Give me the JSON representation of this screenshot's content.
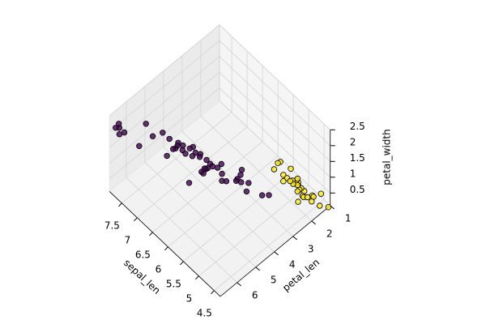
{
  "chart_data": {
    "type": "scatter3d",
    "xlabel": "sepal_len",
    "ylabel": "petal_len",
    "zlabel": "petal_width",
    "xlim": [
      4.3,
      7.9
    ],
    "ylim": [
      1,
      6.9
    ],
    "zlim": [
      0.1,
      2.5
    ],
    "xticks": [
      4.5,
      5.0,
      5.5,
      6.0,
      6.5,
      7.0,
      7.5
    ],
    "yticks": [
      1,
      2,
      3,
      4,
      5,
      6
    ],
    "zticks": [
      0.5,
      1.0,
      1.5,
      2.0,
      2.5
    ],
    "grid": true,
    "series": [
      {
        "color": "#440154",
        "x": [
          7.0,
          6.4,
          6.9,
          5.5,
          6.5,
          5.7,
          6.3,
          4.9,
          6.6,
          5.2,
          5.0,
          5.9,
          6.0,
          6.1,
          5.6,
          6.7,
          5.8,
          6.2,
          5.6,
          5.9,
          6.8,
          5.7,
          5.5,
          6.0,
          6.3,
          5.8,
          7.1,
          6.5,
          7.6,
          4.9,
          7.3,
          6.7,
          7.2,
          6.4,
          6.8,
          5.7,
          7.7,
          7.7,
          6.0,
          6.9,
          5.6,
          7.7,
          7.9,
          6.3,
          6.1,
          6.2,
          5.9
        ],
        "y": [
          4.7,
          4.5,
          4.9,
          4.0,
          4.6,
          4.5,
          4.7,
          3.3,
          4.6,
          3.9,
          3.5,
          4.2,
          4.0,
          4.7,
          3.6,
          4.4,
          4.1,
          4.5,
          3.9,
          4.8,
          4.8,
          3.5,
          3.8,
          5.1,
          6.0,
          5.1,
          5.9,
          5.8,
          6.6,
          4.5,
          6.3,
          5.8,
          6.1,
          5.3,
          5.5,
          5.0,
          6.7,
          6.9,
          5.0,
          5.7,
          4.9,
          6.7,
          6.4,
          5.6,
          5.6,
          5.4,
          5.1
        ],
        "z": [
          1.4,
          1.5,
          1.5,
          1.3,
          1.5,
          1.3,
          1.6,
          1.0,
          1.3,
          1.4,
          1.0,
          1.5,
          1.0,
          1.4,
          1.3,
          1.4,
          1.0,
          1.5,
          1.1,
          1.8,
          1.4,
          1.0,
          1.1,
          1.6,
          2.5,
          1.9,
          2.1,
          2.2,
          2.1,
          1.7,
          1.8,
          1.8,
          2.5,
          1.9,
          2.1,
          2.0,
          2.2,
          2.3,
          1.5,
          2.3,
          2.0,
          2.0,
          2.0,
          2.4,
          1.4,
          2.3,
          1.8
        ]
      },
      {
        "color": "#fde725",
        "x": [
          5.1,
          4.9,
          4.7,
          4.6,
          5.0,
          5.4,
          4.6,
          5.0,
          4.4,
          4.9,
          5.4,
          4.8,
          4.8,
          4.3,
          5.8,
          5.7,
          5.4,
          5.1,
          5.7,
          5.1,
          5.4,
          5.1,
          4.6,
          5.1,
          4.8,
          5.0,
          5.0,
          5.2,
          5.0,
          5.3
        ],
        "y": [
          1.4,
          1.4,
          1.3,
          1.5,
          1.4,
          1.7,
          1.4,
          1.5,
          1.4,
          1.5,
          1.5,
          1.6,
          1.4,
          1.1,
          1.2,
          1.5,
          1.3,
          1.4,
          1.7,
          1.5,
          1.7,
          1.5,
          1.0,
          1.7,
          1.9,
          1.6,
          1.6,
          1.5,
          1.6,
          1.5
        ],
        "z": [
          0.2,
          0.2,
          0.2,
          0.2,
          0.2,
          0.4,
          0.3,
          0.2,
          0.2,
          0.1,
          0.2,
          0.2,
          0.1,
          0.1,
          0.2,
          0.4,
          0.4,
          0.3,
          0.3,
          0.3,
          0.2,
          0.4,
          0.2,
          0.5,
          0.2,
          0.2,
          0.4,
          0.2,
          0.6,
          0.2
        ]
      }
    ]
  }
}
